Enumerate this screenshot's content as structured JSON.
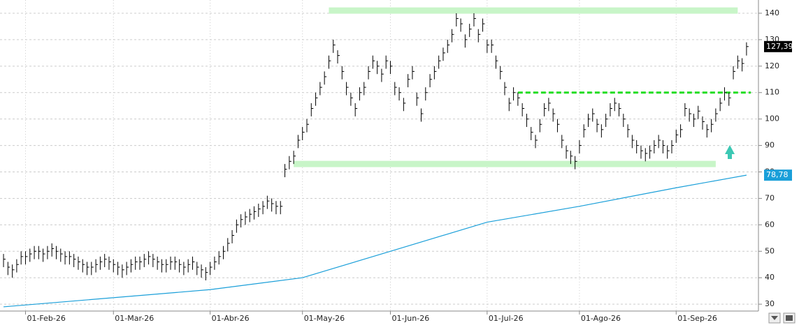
{
  "chart_data": {
    "type": "ohlc",
    "xlim": [
      -0.8,
      171.4
    ],
    "ylim": [
      27.4,
      145
    ],
    "yticks": [
      30,
      40,
      50,
      60,
      70,
      80,
      90,
      100,
      110,
      120,
      130,
      140
    ],
    "xticks": [
      {
        "value": 5,
        "label": "01-Feb-26"
      },
      {
        "value": 25,
        "label": "01-Mar-26"
      },
      {
        "value": 47,
        "label": "01-Abr-26"
      },
      {
        "value": 68,
        "label": "01-May-26"
      },
      {
        "value": 88,
        "label": "01-Jun-26"
      },
      {
        "value": 110,
        "label": "01-Jul-26"
      },
      {
        "value": 131,
        "label": "01-Ago-26"
      },
      {
        "value": 153,
        "label": "01-Sep-26"
      }
    ],
    "grid": true,
    "color": "#000000",
    "close": [
      47,
      44,
      43,
      45,
      48,
      48,
      49,
      50,
      50,
      49,
      50,
      51,
      50,
      49,
      48,
      48,
      47,
      46,
      45,
      44,
      44,
      45,
      46,
      47,
      46,
      45,
      44,
      43,
      44,
      45,
      46,
      46,
      47,
      48,
      47,
      46,
      45,
      45,
      46,
      46,
      45,
      44,
      45,
      46,
      44,
      43,
      42,
      44,
      46,
      48,
      50,
      53,
      56,
      60,
      62,
      63,
      64,
      65,
      66,
      67,
      69,
      68,
      67,
      67,
      81,
      84,
      86,
      92,
      95,
      98,
      104,
      108,
      112,
      116,
      122,
      128,
      124,
      118,
      112,
      108,
      104,
      110,
      112,
      118,
      122,
      120,
      117,
      122,
      120,
      112,
      110,
      106,
      115,
      118,
      108,
      102,
      110,
      115,
      118,
      122,
      125,
      128,
      132,
      138,
      136,
      130,
      134,
      138,
      132,
      136,
      128,
      128,
      122,
      118,
      112,
      106,
      110,
      108,
      104,
      100,
      95,
      92,
      98,
      104,
      106,
      102,
      98,
      92,
      88,
      86,
      84,
      90,
      96,
      100,
      102,
      98,
      96,
      100,
      104,
      106,
      104,
      100,
      96,
      92,
      90,
      88,
      87,
      88,
      90,
      92,
      90,
      88,
      90,
      94,
      96,
      104,
      102,
      100,
      103,
      99,
      96,
      98,
      102,
      106,
      110,
      108,
      118,
      122,
      121,
      127.39
    ],
    "high": [
      49,
      46,
      45,
      47,
      50,
      50,
      51,
      52,
      52,
      51,
      52,
      53,
      52,
      51,
      50,
      50,
      49,
      48,
      47,
      46,
      46,
      47,
      48,
      49,
      48,
      47,
      46,
      45,
      46,
      47,
      48,
      48,
      49,
      50,
      49,
      48,
      47,
      47,
      48,
      48,
      47,
      46,
      47,
      48,
      46,
      45,
      44,
      46,
      48,
      50,
      52,
      55,
      58,
      62,
      64,
      65,
      66,
      67,
      68,
      69,
      71,
      70,
      69,
      69,
      83,
      86,
      88,
      94,
      97,
      100,
      106,
      110,
      114,
      118,
      124,
      130,
      126,
      120,
      114,
      110,
      106,
      112,
      114,
      120,
      124,
      122,
      119,
      124,
      122,
      114,
      112,
      108,
      117,
      120,
      110,
      104,
      112,
      117,
      120,
      124,
      127,
      130,
      134,
      140,
      138,
      132,
      136,
      140,
      134,
      138,
      130,
      130,
      124,
      120,
      114,
      108,
      112,
      110,
      106,
      102,
      97,
      94,
      100,
      106,
      108,
      104,
      100,
      94,
      90,
      88,
      86,
      92,
      98,
      102,
      104,
      100,
      98,
      102,
      106,
      108,
      106,
      102,
      98,
      94,
      92,
      90,
      89,
      90,
      92,
      94,
      92,
      90,
      92,
      96,
      98,
      106,
      104,
      102,
      105,
      101,
      98,
      100,
      104,
      108,
      112,
      110,
      120,
      124,
      123,
      129
    ],
    "low": [
      44,
      41,
      40,
      42,
      45,
      45,
      46,
      47,
      47,
      46,
      47,
      48,
      47,
      46,
      45,
      45,
      44,
      43,
      42,
      41,
      41,
      42,
      43,
      44,
      43,
      42,
      41,
      40,
      41,
      42,
      43,
      43,
      44,
      45,
      44,
      43,
      42,
      42,
      43,
      43,
      42,
      41,
      42,
      43,
      41,
      40,
      39,
      41,
      43,
      45,
      47,
      50,
      53,
      57,
      59,
      60,
      61,
      62,
      63,
      64,
      66,
      65,
      64,
      64,
      78,
      81,
      83,
      89,
      92,
      95,
      101,
      105,
      109,
      113,
      119,
      125,
      121,
      115,
      109,
      105,
      101,
      107,
      109,
      115,
      119,
      117,
      114,
      119,
      117,
      109,
      107,
      103,
      112,
      115,
      105,
      99,
      107,
      112,
      115,
      119,
      122,
      125,
      129,
      135,
      133,
      127,
      131,
      135,
      129,
      133,
      125,
      125,
      119,
      115,
      109,
      103,
      107,
      105,
      101,
      97,
      92,
      89,
      95,
      101,
      103,
      99,
      95,
      89,
      85,
      83,
      81,
      87,
      93,
      97,
      99,
      95,
      93,
      97,
      101,
      103,
      101,
      97,
      93,
      89,
      87,
      85,
      84,
      85,
      87,
      89,
      87,
      85,
      87,
      91,
      93,
      101,
      99,
      97,
      100,
      96,
      93,
      95,
      99,
      103,
      107,
      105,
      115,
      119,
      118,
      124
    ],
    "moving_average": {
      "color": "#1a9fd9",
      "x": [
        0,
        47,
        68,
        88,
        110,
        131,
        153,
        169
      ],
      "values": [
        29,
        35.5,
        40,
        50,
        61,
        67,
        74,
        78.78
      ]
    },
    "levels": [
      {
        "style": "band",
        "color": "#c8f5c8",
        "value": 141,
        "start": 74,
        "end": 167
      },
      {
        "style": "band",
        "color": "#c8f5c8",
        "value": 83,
        "start": 66,
        "end": 162
      },
      {
        "style": "dashed",
        "color": "#22dd22",
        "value": 110,
        "start": 117,
        "end": 170
      }
    ],
    "last_labels": [
      {
        "value": 127.39,
        "label": "127,39",
        "color": "#000000"
      },
      {
        "value": 78.78,
        "label": "78,78",
        "color": "#1a9fd9"
      }
    ]
  }
}
